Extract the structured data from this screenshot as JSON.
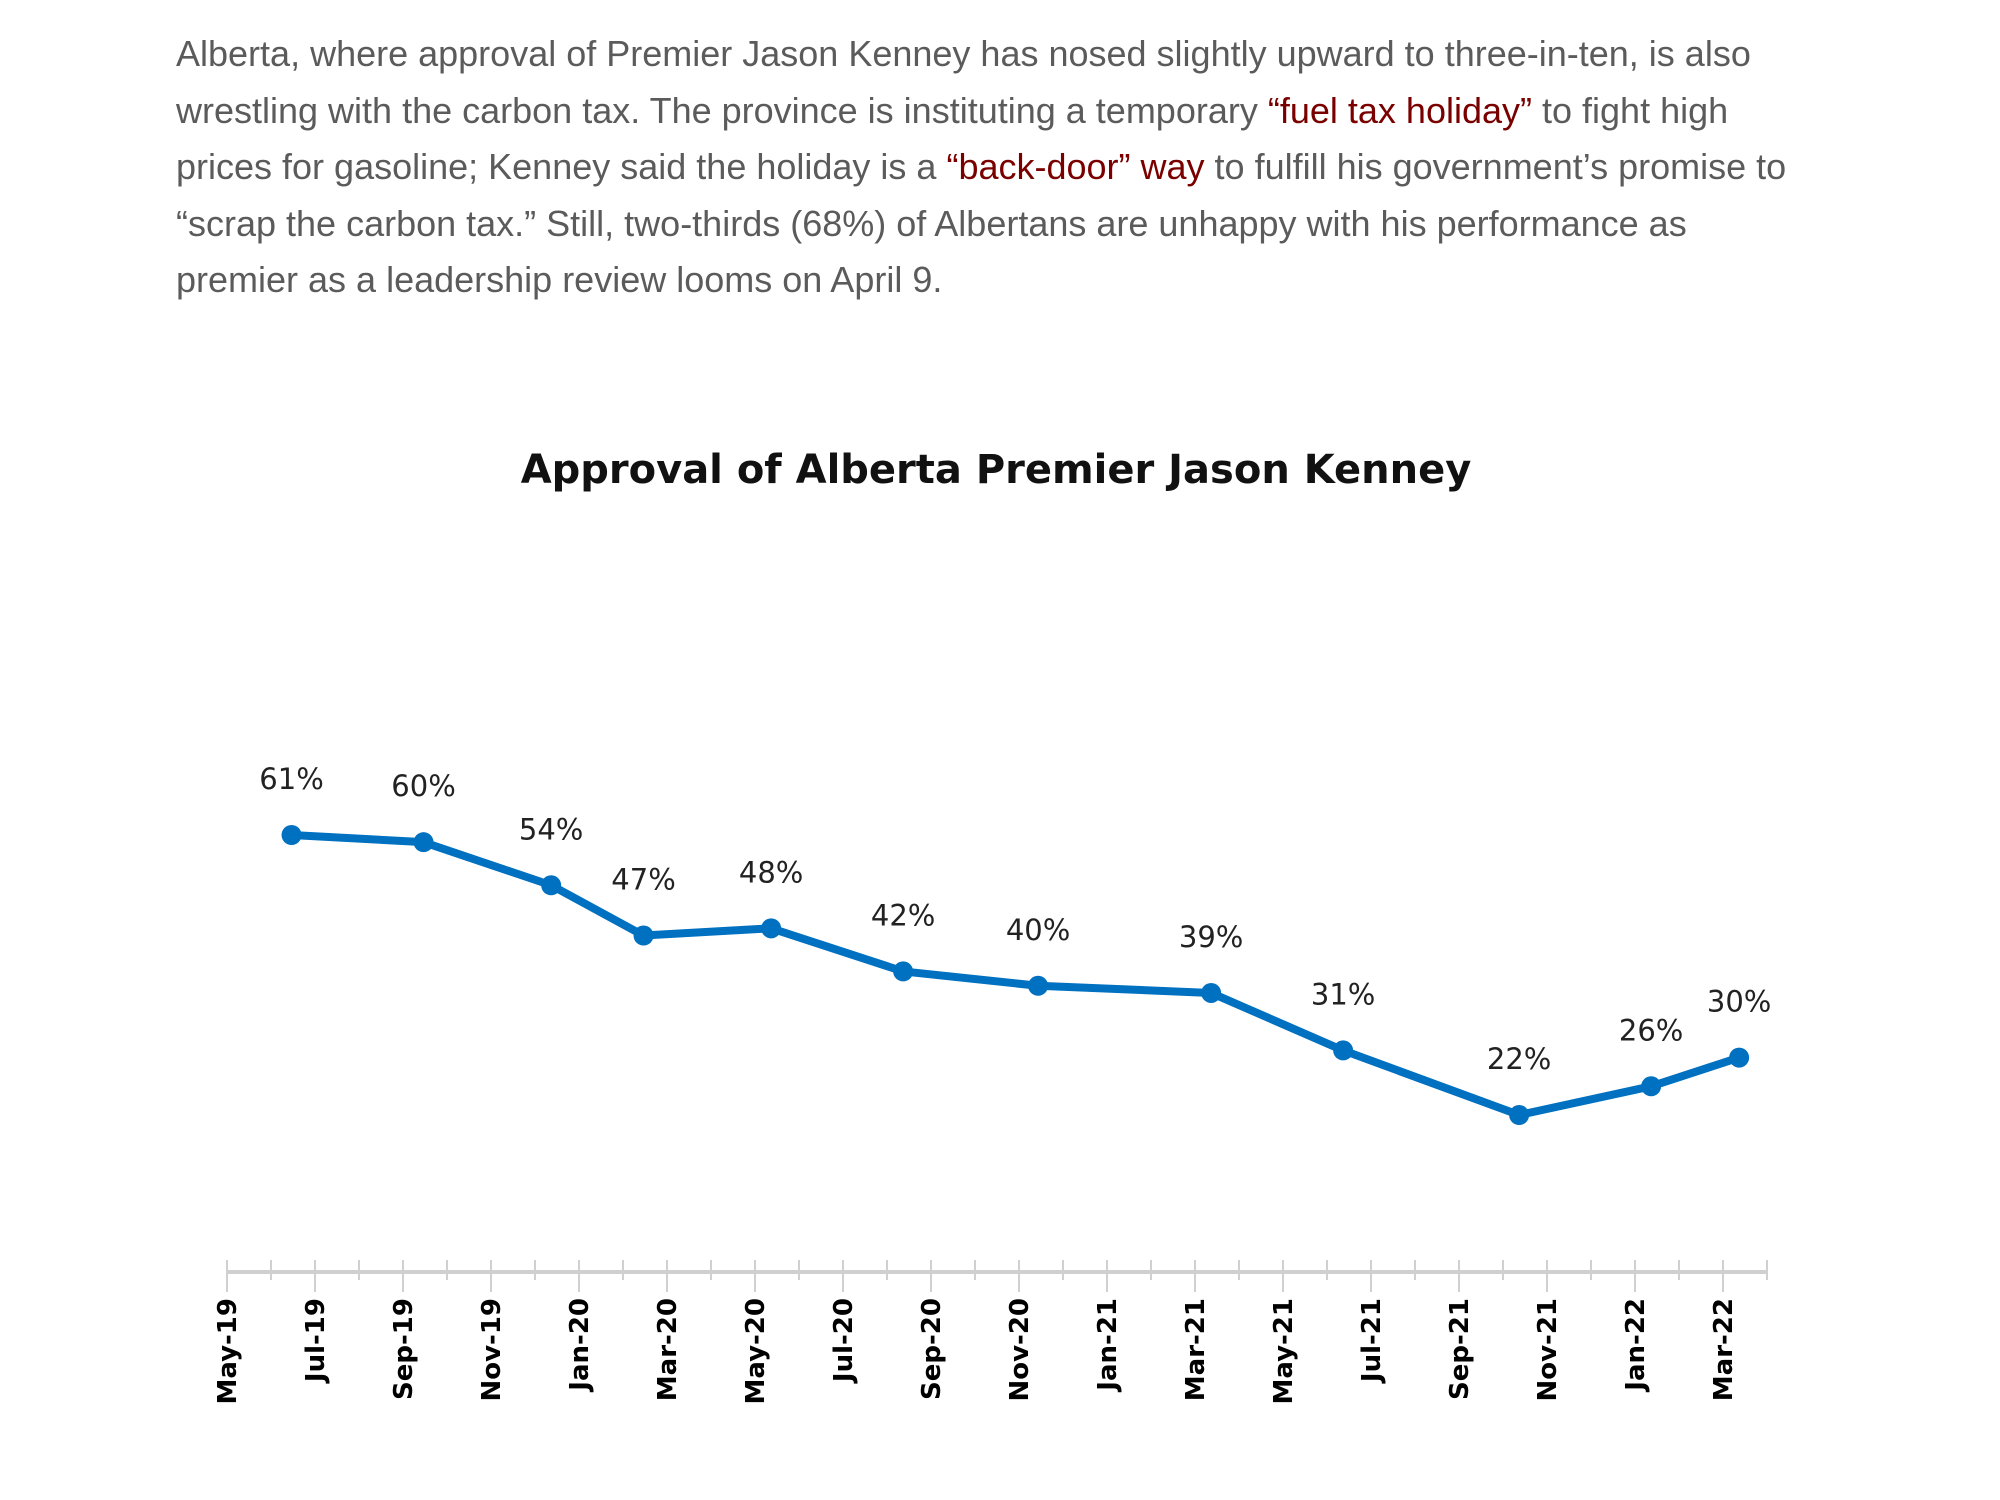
{
  "article": {
    "segments": [
      {
        "text": "Alberta, where approval of Premier Jason Kenney has nosed slightly upward to three-in-ten, is also wrestling with the carbon tax. The province is instituting a temporary ",
        "link": false
      },
      {
        "text": "“fuel tax holiday”",
        "link": true
      },
      {
        "text": " to fight high prices for gasoline; Kenney said the holiday is a ",
        "link": false
      },
      {
        "text": "“back-door” way",
        "link": true
      },
      {
        "text": " to fulfill his government’s promise to “scrap the carbon tax.” Still, two-thirds (68%) of Albertans are unhappy with his performance as premier as a leadership review looms on April 9.",
        "link": false
      }
    ],
    "text_color": "#5b5b5b",
    "link_color": "#7a0000"
  },
  "chart_data": {
    "type": "line",
    "title": "Approval of Alberta Premier Jason Kenney",
    "xlabel": "",
    "ylabel": "",
    "x": [
      "2019-06-15",
      "2019-09-15",
      "2019-12-12",
      "2020-02-15",
      "2020-05-12",
      "2020-08-12",
      "2020-11-14",
      "2021-03-12",
      "2021-06-12",
      "2021-10-12",
      "2022-01-12",
      "2022-03-12"
    ],
    "series": [
      {
        "values": [
          61,
          60,
          54,
          47,
          48,
          42,
          40,
          39,
          31,
          22,
          26,
          30
        ],
        "data_labels": [
          "61%",
          "60%",
          "54%",
          "47%",
          "48%",
          "42%",
          "40%",
          "39%",
          "31%",
          "22%",
          "26%",
          "30%"
        ],
        "color": "#0070C0"
      }
    ],
    "x_tick_labels": [
      "May-19",
      "Jul-19",
      "Sep-19",
      "Nov-19",
      "Jan-20",
      "Mar-20",
      "May-20",
      "Jul-20",
      "Sep-20",
      "Nov-20",
      "Jan-21",
      "Mar-21",
      "May-21",
      "Jul-21",
      "Sep-21",
      "Nov-21",
      "Jan-22",
      "Mar-22"
    ],
    "xlim": [
      "2019-05",
      "2022-04"
    ],
    "y_axis_visible": false,
    "grid": false,
    "legend": "none",
    "markers": true
  }
}
